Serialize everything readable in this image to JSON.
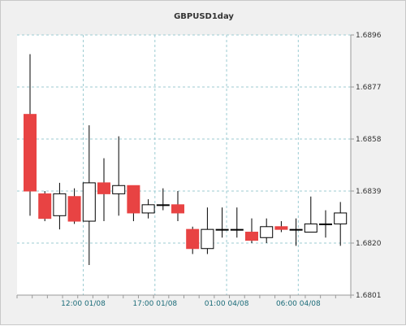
{
  "chart_data": {
    "type": "candlestick",
    "title": "GBPUSD1day",
    "ylim": [
      1.6801,
      1.6896
    ],
    "y_ticks": [
      "1.6896",
      "1.6877",
      "1.6858",
      "1.6839",
      "1.6820",
      "1.6801"
    ],
    "y_tick_values": [
      1.6896,
      1.6877,
      1.6858,
      1.6839,
      1.682,
      1.6801
    ],
    "x_tick_labels": [
      "12:00 01/08",
      "17:00 01/08",
      "01:00 04/08",
      "06:00 04/08"
    ],
    "x_tick_candle_positions": [
      3.6,
      8.45,
      13.3,
      18.15
    ],
    "grid": true,
    "colors": {
      "bull": "#ffffff",
      "bear": "#e84343",
      "grid": "#9ccbd2",
      "plot_bg": "#ffffff",
      "frame_bg": "#f0f0f0",
      "title": "#333333",
      "x_label": "#1a6b78"
    },
    "candles": [
      {
        "open": 1.6867,
        "high": 1.6889,
        "low": 1.683,
        "close": 1.6839
      },
      {
        "open": 1.6838,
        "high": 1.6839,
        "low": 1.6828,
        "close": 1.6829
      },
      {
        "open": 1.683,
        "high": 1.6842,
        "low": 1.6825,
        "close": 1.6838
      },
      {
        "open": 1.6837,
        "high": 1.684,
        "low": 1.6827,
        "close": 1.6828
      },
      {
        "open": 1.6828,
        "high": 1.6863,
        "low": 1.6812,
        "close": 1.6842
      },
      {
        "open": 1.6842,
        "high": 1.6851,
        "low": 1.6828,
        "close": 1.6838
      },
      {
        "open": 1.6838,
        "high": 1.6859,
        "low": 1.683,
        "close": 1.6841
      },
      {
        "open": 1.6841,
        "high": 1.6841,
        "low": 1.6828,
        "close": 1.6831
      },
      {
        "open": 1.6831,
        "high": 1.6836,
        "low": 1.6829,
        "close": 1.6834
      },
      {
        "open": 1.6834,
        "high": 1.684,
        "low": 1.6832,
        "close": 1.6834
      },
      {
        "open": 1.6834,
        "high": 1.6839,
        "low": 1.6828,
        "close": 1.6831
      },
      {
        "open": 1.6825,
        "high": 1.6826,
        "low": 1.6816,
        "close": 1.6818
      },
      {
        "open": 1.6818,
        "high": 1.6833,
        "low": 1.6816,
        "close": 1.6825
      },
      {
        "open": 1.6825,
        "high": 1.6833,
        "low": 1.6822,
        "close": 1.6825
      },
      {
        "open": 1.6825,
        "high": 1.6833,
        "low": 1.6822,
        "close": 1.6825
      },
      {
        "open": 1.6824,
        "high": 1.6829,
        "low": 1.682,
        "close": 1.6821
      },
      {
        "open": 1.6822,
        "high": 1.6829,
        "low": 1.682,
        "close": 1.6826
      },
      {
        "open": 1.6826,
        "high": 1.6828,
        "low": 1.6824,
        "close": 1.6825
      },
      {
        "open": 1.6825,
        "high": 1.6829,
        "low": 1.6819,
        "close": 1.6825
      },
      {
        "open": 1.6824,
        "high": 1.6837,
        "low": 1.6824,
        "close": 1.6827
      },
      {
        "open": 1.6827,
        "high": 1.6832,
        "low": 1.6822,
        "close": 1.6827
      },
      {
        "open": 1.6827,
        "high": 1.6835,
        "low": 1.6819,
        "close": 1.6831
      }
    ]
  }
}
